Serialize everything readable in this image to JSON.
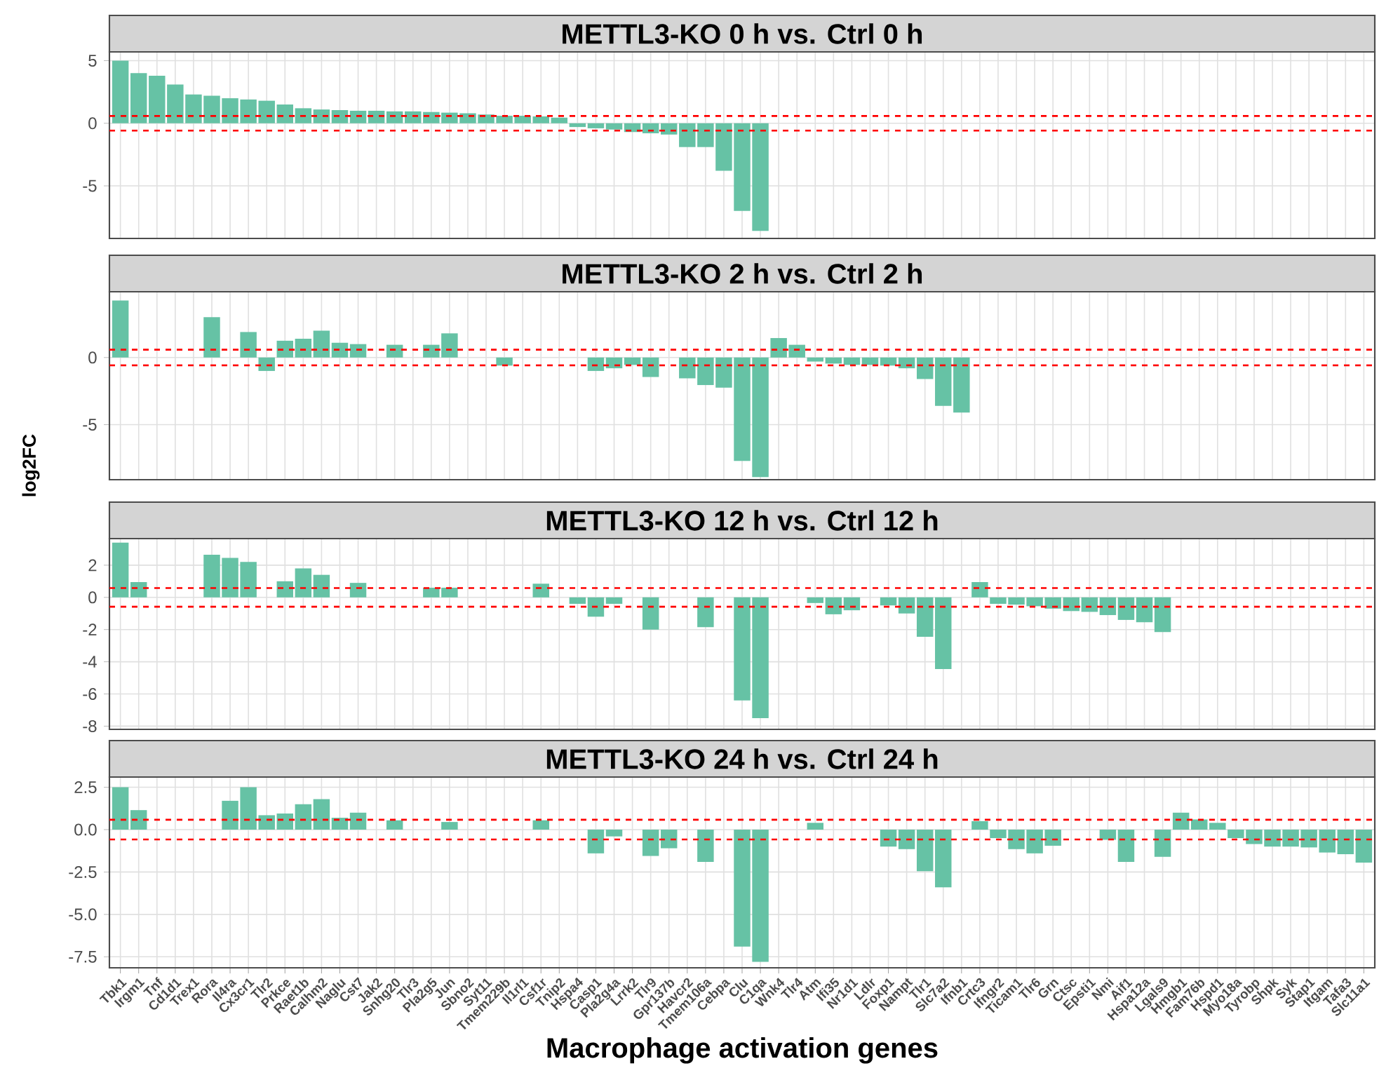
{
  "chart_data": [
    {
      "type": "bar",
      "title": "METTL3-KO 0 h vs. Ctrl 0 h",
      "color": "#66c2a5",
      "grid": true,
      "tick_labels": "y",
      "categories": [
        null,
        null,
        null,
        null,
        null,
        null,
        null,
        null,
        null,
        null,
        null,
        null,
        null,
        null,
        null,
        null,
        null,
        null,
        null,
        null,
        null,
        null,
        null,
        null,
        null,
        null,
        null,
        null,
        null,
        null,
        null,
        null,
        null,
        null,
        null,
        null,
        null,
        null,
        null,
        null,
        null,
        null,
        null,
        null,
        null,
        null,
        null,
        null,
        null,
        null,
        null,
        null,
        null,
        null,
        null,
        null,
        null,
        null,
        null,
        null,
        null,
        null,
        null,
        null,
        null,
        null,
        null,
        null,
        null
      ],
      "values": [
        5.0,
        4.0,
        3.8,
        3.1,
        2.3,
        2.2,
        2.0,
        1.9,
        1.8,
        1.5,
        1.2,
        1.1,
        1.05,
        1.0,
        1.0,
        0.95,
        0.95,
        0.9,
        0.85,
        0.8,
        0.7,
        0.6,
        0.6,
        0.55,
        0.45,
        -0.3,
        -0.4,
        -0.5,
        -0.7,
        -0.8,
        -0.9,
        -1.9,
        -1.9,
        -3.8,
        -7.0,
        -8.6,
        null,
        null,
        null,
        null,
        null,
        null,
        null,
        null,
        null,
        null,
        null,
        null,
        null,
        null,
        null,
        null,
        null,
        null,
        null,
        null,
        null,
        null,
        null,
        null,
        null,
        null,
        null,
        null,
        null,
        null,
        null,
        null,
        null
      ],
      "ylim": [
        -9.2,
        5.7
      ],
      "yticks": [
        -5,
        0,
        5
      ],
      "ref_lines": [
        {
          "axis": "y",
          "value": 0.58,
          "color": "#ff0000",
          "line_style": "dashed"
        },
        {
          "axis": "y",
          "value": -0.58,
          "color": "#ff0000",
          "line_style": "dashed"
        }
      ]
    },
    {
      "type": "bar",
      "title": "METTL3-KO 2 h vs. Ctrl 2 h",
      "ylabel": "log2FC",
      "color": "#66c2a5",
      "grid": true,
      "tick_labels": "y",
      "categories": [
        null,
        null,
        null,
        null,
        null,
        null,
        null,
        null,
        null,
        null,
        null,
        null,
        null,
        null,
        null,
        null,
        null,
        null,
        null,
        null,
        null,
        null,
        null,
        null,
        null,
        null,
        null,
        null,
        null,
        null,
        null,
        null,
        null,
        null,
        null,
        null,
        null,
        null,
        null,
        null,
        null,
        null,
        null,
        null,
        null,
        null,
        null,
        null,
        null,
        null,
        null,
        null,
        null,
        null,
        null,
        null,
        null,
        null,
        null,
        null,
        null,
        null,
        null,
        null,
        null,
        null,
        null,
        null,
        null
      ],
      "values": [
        4.25,
        null,
        null,
        null,
        null,
        3.0,
        null,
        1.9,
        -1.0,
        1.25,
        1.4,
        2.0,
        1.1,
        1.0,
        null,
        0.95,
        null,
        0.95,
        1.8,
        null,
        null,
        -0.6,
        null,
        null,
        null,
        null,
        -1.0,
        -0.8,
        -0.55,
        -1.45,
        null,
        -1.55,
        -2.05,
        -2.25,
        -7.7,
        -8.9,
        1.45,
        0.95,
        -0.3,
        -0.45,
        -0.55,
        -0.55,
        -0.6,
        -0.8,
        -1.6,
        -3.6,
        -4.1,
        null,
        null,
        null,
        null,
        null,
        null,
        null,
        null,
        null,
        null,
        null,
        null,
        null,
        null,
        null,
        null,
        null,
        null,
        null,
        null,
        null,
        null
      ],
      "ylim": [
        -9.1,
        4.9
      ],
      "yticks": [
        -5,
        0
      ],
      "ref_lines": [
        {
          "axis": "y",
          "value": 0.58,
          "color": "#ff0000",
          "line_style": "dashed"
        },
        {
          "axis": "y",
          "value": -0.58,
          "color": "#ff0000",
          "line_style": "dashed"
        }
      ]
    },
    {
      "type": "bar",
      "title": "METTL3-KO 12 h vs. Ctrl 12 h",
      "color": "#66c2a5",
      "grid": true,
      "tick_labels": "y",
      "categories": [
        null,
        null,
        null,
        null,
        null,
        null,
        null,
        null,
        null,
        null,
        null,
        null,
        null,
        null,
        null,
        null,
        null,
        null,
        null,
        null,
        null,
        null,
        null,
        null,
        null,
        null,
        null,
        null,
        null,
        null,
        null,
        null,
        null,
        null,
        null,
        null,
        null,
        null,
        null,
        null,
        null,
        null,
        null,
        null,
        null,
        null,
        null,
        null,
        null,
        null,
        null,
        null,
        null,
        null,
        null,
        null,
        null,
        null,
        null,
        null,
        null,
        null,
        null,
        null,
        null,
        null,
        null,
        null,
        null
      ],
      "values": [
        3.4,
        0.95,
        null,
        null,
        null,
        2.65,
        2.45,
        2.2,
        null,
        1.0,
        1.8,
        1.4,
        null,
        0.9,
        null,
        null,
        null,
        0.6,
        0.6,
        null,
        null,
        null,
        null,
        0.85,
        null,
        -0.4,
        -1.2,
        -0.4,
        null,
        -2.0,
        null,
        null,
        -1.85,
        null,
        -6.4,
        -7.5,
        null,
        null,
        -0.35,
        -1.05,
        -0.8,
        null,
        -0.5,
        -1.0,
        -2.45,
        -4.45,
        null,
        0.95,
        -0.4,
        -0.45,
        -0.55,
        -0.7,
        -0.85,
        -0.9,
        -1.1,
        -1.4,
        -1.55,
        -2.15,
        null,
        null,
        null,
        null,
        null,
        null,
        null,
        null,
        null,
        null,
        null
      ],
      "ylim": [
        -8.2,
        3.65
      ],
      "yticks": [
        -8,
        -6,
        -4,
        -2,
        0,
        2
      ],
      "ref_lines": [
        {
          "axis": "y",
          "value": 0.58,
          "color": "#ff0000",
          "line_style": "dashed"
        },
        {
          "axis": "y",
          "value": -0.58,
          "color": "#ff0000",
          "line_style": "dashed"
        }
      ]
    },
    {
      "type": "bar",
      "title": "METTL3-KO 24 h vs. Ctrl 24 h",
      "xlabel": "Macrophage activation genes",
      "color": "#66c2a5",
      "grid": true,
      "categories": [
        "Tbk1",
        "Irgm1",
        "Tnf",
        "Cd1d1",
        "Trex1",
        "Rora",
        "Il4ra",
        "Cx3cr1",
        "Tlr2",
        "Prkce",
        "Raet1b",
        "Calhm2",
        "Naglu",
        "Cst7",
        "Jak2",
        "Snhg20",
        "Tlr3",
        "Pla2g5",
        "Jun",
        "Sbno2",
        "Syt11",
        "Tmem229b",
        "Il1rl1",
        "Csf1r",
        "Tnip2",
        "Hspa4",
        "Casp1",
        "Pla2g4a",
        "Lrrk2",
        "Tlr9",
        "Gpr137b",
        "Havcr2",
        "Tmem106a",
        "Cebpa",
        "Clu",
        "C1qa",
        "Wnk4",
        "Tlr4",
        "Atm",
        "Ifi35",
        "Nr1d1",
        "Ldlr",
        "Foxp1",
        "Nampt",
        "Tlr1",
        "Slc7a2",
        "Ifnb1",
        "Crtc3",
        "Ifngr2",
        "Ticam1",
        "Tlr6",
        "Grn",
        "Ctsc",
        "Epsti1",
        "Nmi",
        "Aif1",
        "Hspa12a",
        "Lgals9",
        "Hmgb1",
        "Fam76b",
        "Hspd1",
        "Myo18a",
        "Tyrobp",
        "Shpk",
        "Syk",
        "Stap1",
        "Itgam",
        "Tafa3",
        "Slc11a1"
      ],
      "values": [
        2.5,
        1.15,
        null,
        null,
        null,
        null,
        1.7,
        2.5,
        0.85,
        0.95,
        1.5,
        1.8,
        0.7,
        1.0,
        null,
        0.55,
        null,
        null,
        0.45,
        null,
        null,
        null,
        null,
        0.55,
        null,
        null,
        -1.4,
        -0.4,
        null,
        -1.55,
        -1.1,
        null,
        -1.9,
        null,
        -6.9,
        -7.8,
        null,
        null,
        0.4,
        null,
        null,
        null,
        -1.0,
        -1.15,
        -2.45,
        -3.4,
        null,
        0.5,
        -0.5,
        -1.15,
        -1.4,
        -0.95,
        null,
        null,
        -0.6,
        -1.9,
        null,
        -1.6,
        1.0,
        0.6,
        0.4,
        -0.5,
        -0.85,
        -1.0,
        -1.0,
        -1.05,
        -1.35,
        -1.45,
        -1.95
      ],
      "ylim": [
        -8.15,
        3.1
      ],
      "yticks": [
        {
          "value": -7.5,
          "label": "-7.5"
        },
        {
          "value": -5,
          "label": "-5.0"
        },
        {
          "value": -2.5,
          "label": "-2.5"
        },
        {
          "value": 0,
          "label": "0.0"
        },
        {
          "value": 2.5,
          "label": "2.5"
        }
      ],
      "ref_lines": [
        {
          "axis": "y",
          "value": 0.58,
          "color": "#ff0000",
          "line_style": "dashed"
        },
        {
          "axis": "y",
          "value": -0.58,
          "color": "#ff0000",
          "line_style": "dashed"
        }
      ]
    }
  ]
}
